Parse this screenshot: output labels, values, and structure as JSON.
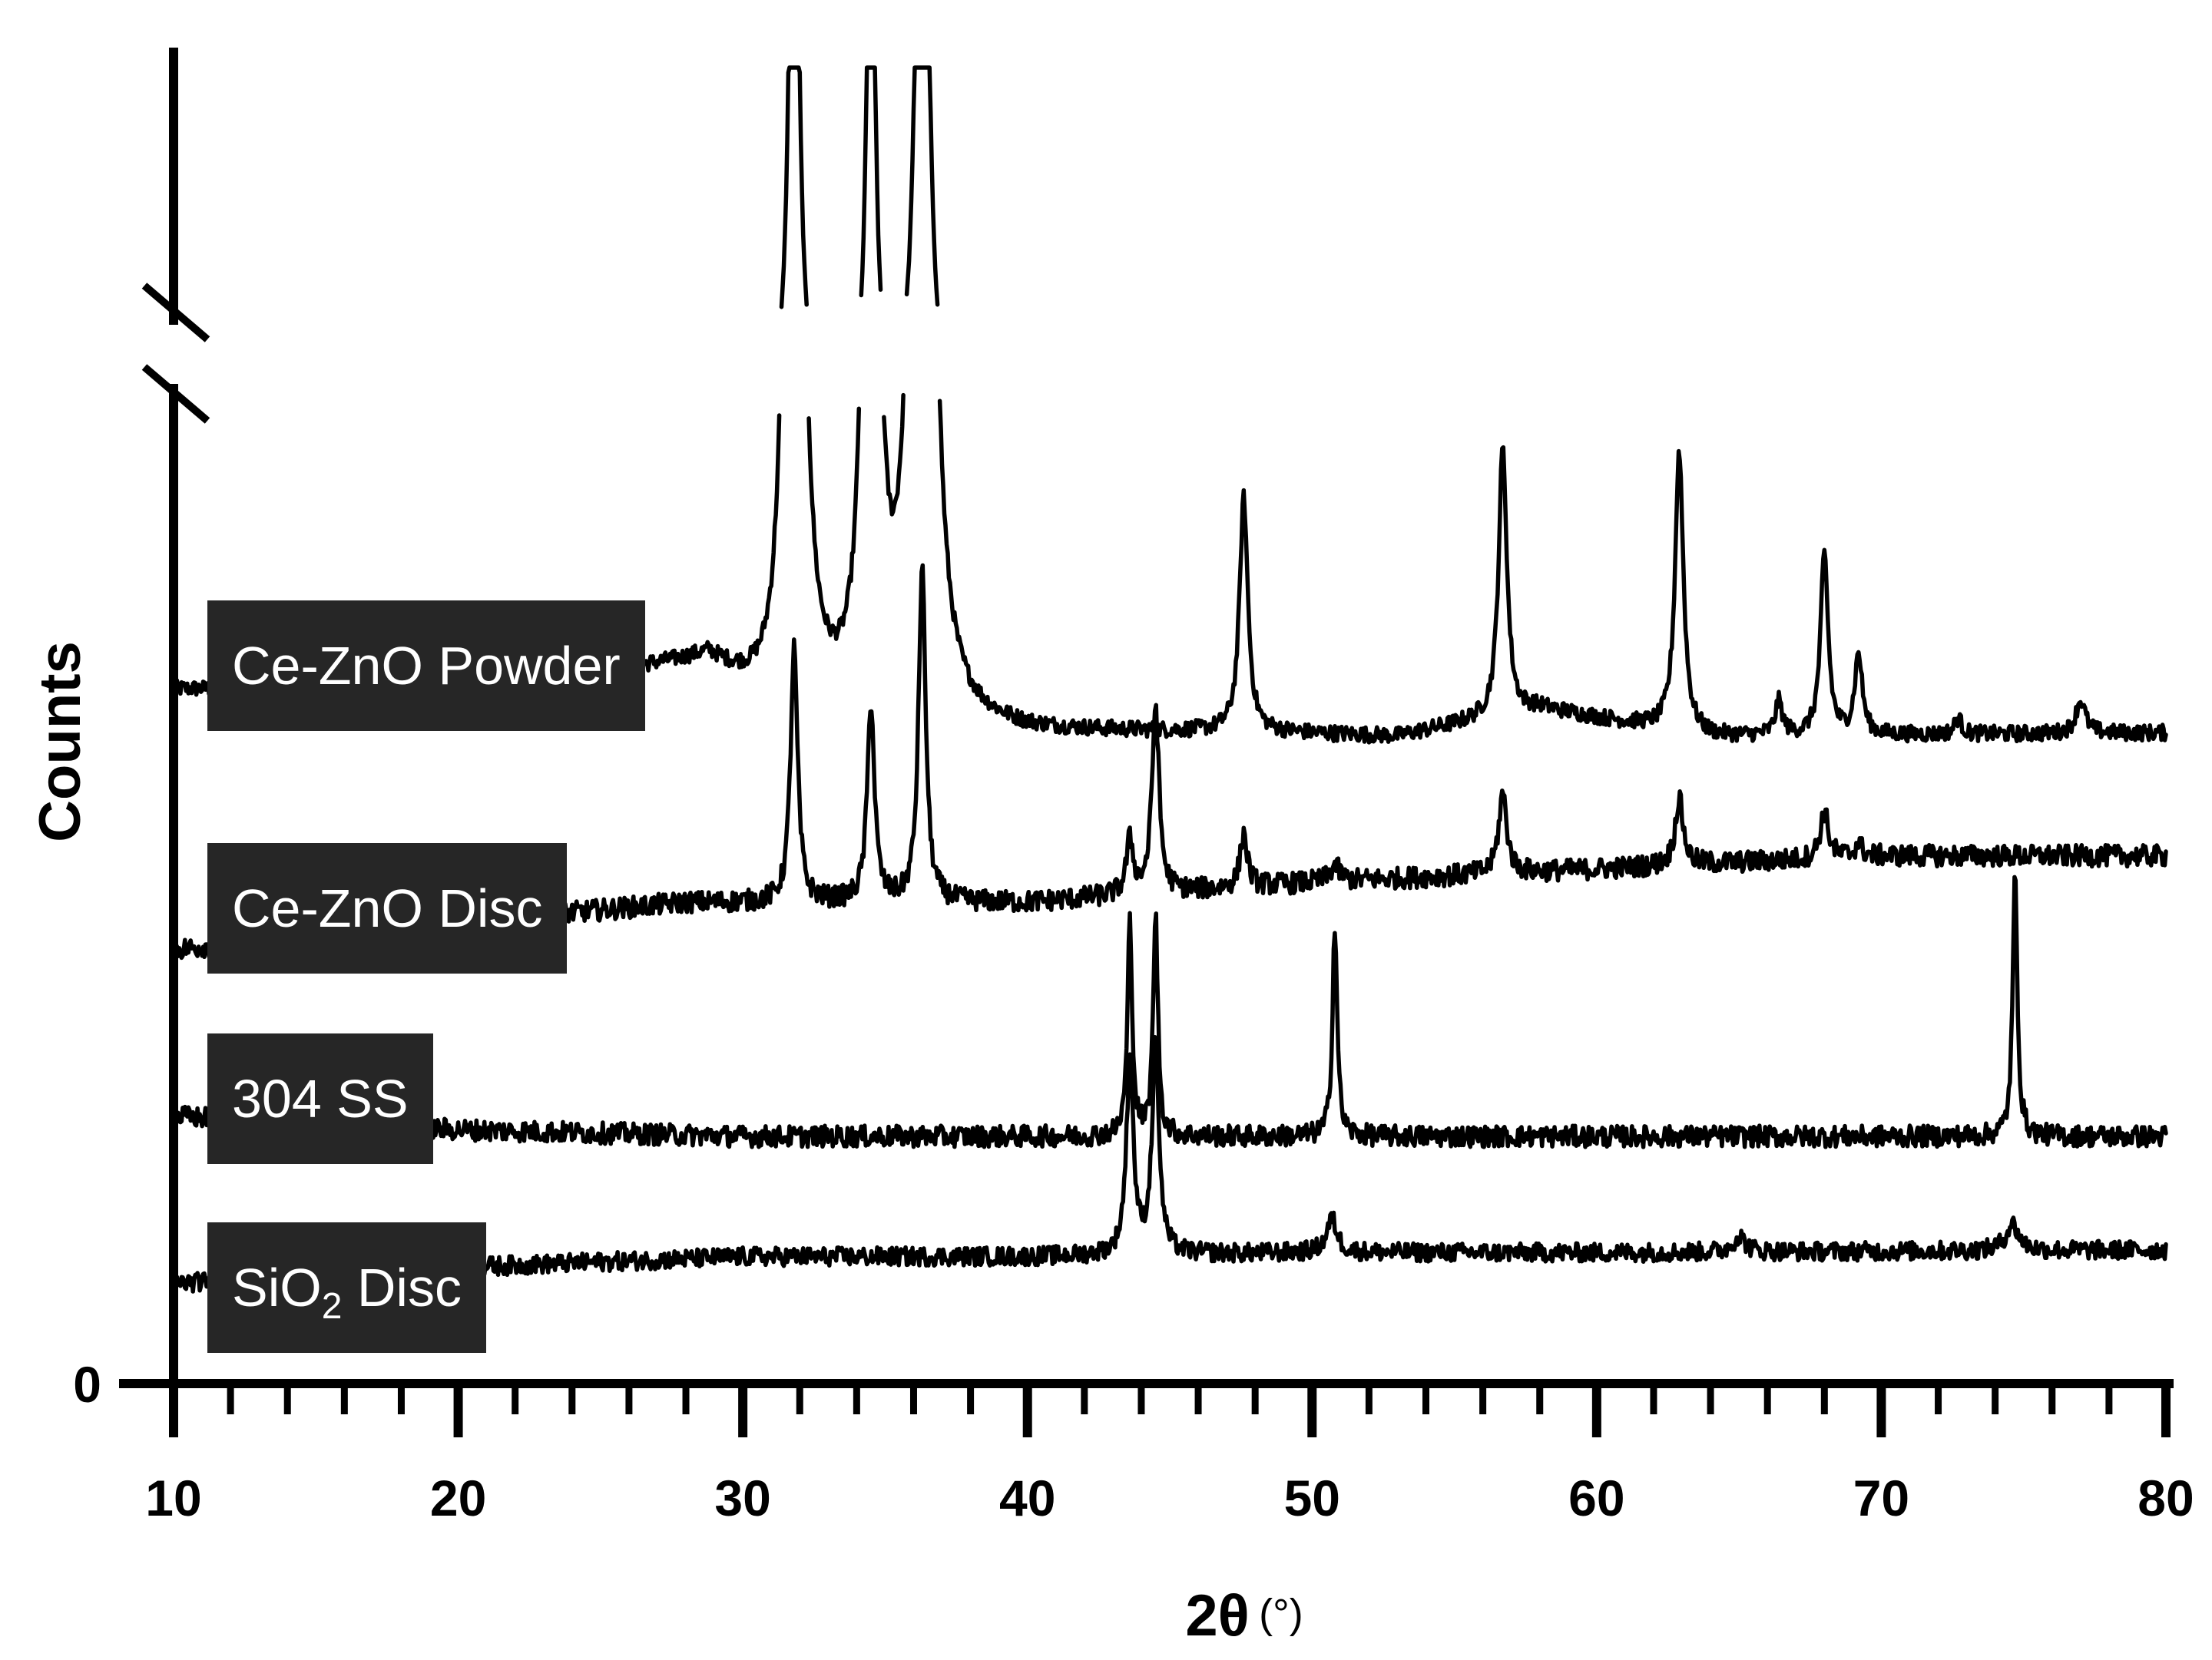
{
  "chart_data": {
    "type": "line",
    "title": "",
    "xlabel": "2θ",
    "xlabel_unit": "(°)",
    "ylabel": "Counts",
    "xlim": [
      10,
      80
    ],
    "xticks": [
      "10",
      "20",
      "30",
      "40",
      "50",
      "60",
      "70",
      "80"
    ],
    "yticks": [
      "0"
    ],
    "y_axis_break": true,
    "grid": false,
    "legend": "none",
    "series": [
      {
        "name": "Ce-ZnO Powder",
        "label_parts": [
          "Ce-ZnO Powder"
        ],
        "offset": 0.52,
        "noise": 0.006,
        "baseline": [
          [
            10,
            0.0
          ],
          [
            20,
            0.0
          ],
          [
            28.8,
            0.02
          ],
          [
            31,
            -0.02
          ],
          [
            40,
            -0.033
          ],
          [
            48,
            -0.033
          ],
          [
            53,
            -0.036
          ],
          [
            58,
            -0.015
          ],
          [
            64,
            -0.036
          ],
          [
            80,
            -0.033
          ]
        ],
        "peaks": [
          [
            31.8,
            2.1,
            0.35
          ],
          [
            34.5,
            1.8,
            0.3
          ],
          [
            36.3,
            3.05,
            0.36
          ],
          [
            47.6,
            0.175,
            0.35
          ],
          [
            56.7,
            0.2,
            0.35
          ],
          [
            62.9,
            0.21,
            0.35
          ],
          [
            66.4,
            0.025,
            0.3
          ],
          [
            68,
            0.135,
            0.32
          ],
          [
            69.2,
            0.06,
            0.32
          ],
          [
            72.7,
            0.012,
            0.3
          ],
          [
            77,
            0.025,
            0.4
          ]
        ]
      },
      {
        "name": "Ce-ZnO Disc",
        "label_parts": [
          "Ce-ZnO Disc"
        ],
        "offset": 0.325,
        "noise": 0.008,
        "baseline": [
          [
            10,
            0.0
          ],
          [
            20,
            0.02
          ],
          [
            28,
            0.035
          ],
          [
            40,
            0.035
          ],
          [
            50,
            0.05
          ],
          [
            60,
            0.06
          ],
          [
            70,
            0.07
          ],
          [
            80,
            0.07
          ]
        ],
        "peaks": [
          [
            31.8,
            0.19,
            0.3
          ],
          [
            34.5,
            0.15,
            0.3
          ],
          [
            36.3,
            0.25,
            0.3
          ],
          [
            43.6,
            0.04,
            0.3
          ],
          [
            44.5,
            0.14,
            0.3
          ],
          [
            47.6,
            0.04,
            0.3
          ],
          [
            50.8,
            0.012,
            0.4
          ],
          [
            56.7,
            0.06,
            0.35
          ],
          [
            62.9,
            0.05,
            0.35
          ],
          [
            68,
            0.035,
            0.35
          ],
          [
            69.2,
            0.01,
            0.3
          ]
        ]
      },
      {
        "name": "304 SS",
        "label_parts": [
          "304 SS"
        ],
        "offset": 0.2,
        "noise": 0.008,
        "baseline": [
          [
            10,
            0.0
          ],
          [
            20,
            -0.01
          ],
          [
            30,
            -0.015
          ],
          [
            40,
            -0.015
          ],
          [
            60,
            -0.015
          ],
          [
            80,
            -0.015
          ]
        ],
        "peaks": [
          [
            43.6,
            0.16,
            0.2
          ],
          [
            44.5,
            0.165,
            0.2
          ],
          [
            50.8,
            0.16,
            0.2
          ],
          [
            74.7,
            0.195,
            0.2
          ]
        ]
      },
      {
        "name": "SiO2 Disc",
        "label_parts": [
          "SiO",
          "2",
          " Disc"
        ],
        "offset": 0.075,
        "noise": 0.007,
        "baseline": [
          [
            10,
            0.0
          ],
          [
            20,
            0.012
          ],
          [
            30,
            0.02
          ],
          [
            40,
            0.02
          ],
          [
            50,
            0.023
          ],
          [
            60,
            0.023
          ],
          [
            80,
            0.025
          ]
        ],
        "peaks": [
          [
            43.6,
            0.145,
            0.3
          ],
          [
            44.5,
            0.155,
            0.3
          ],
          [
            50.7,
            0.025,
            0.45
          ],
          [
            65,
            0.012,
            0.5
          ],
          [
            74.6,
            0.02,
            0.55
          ]
        ]
      }
    ]
  }
}
